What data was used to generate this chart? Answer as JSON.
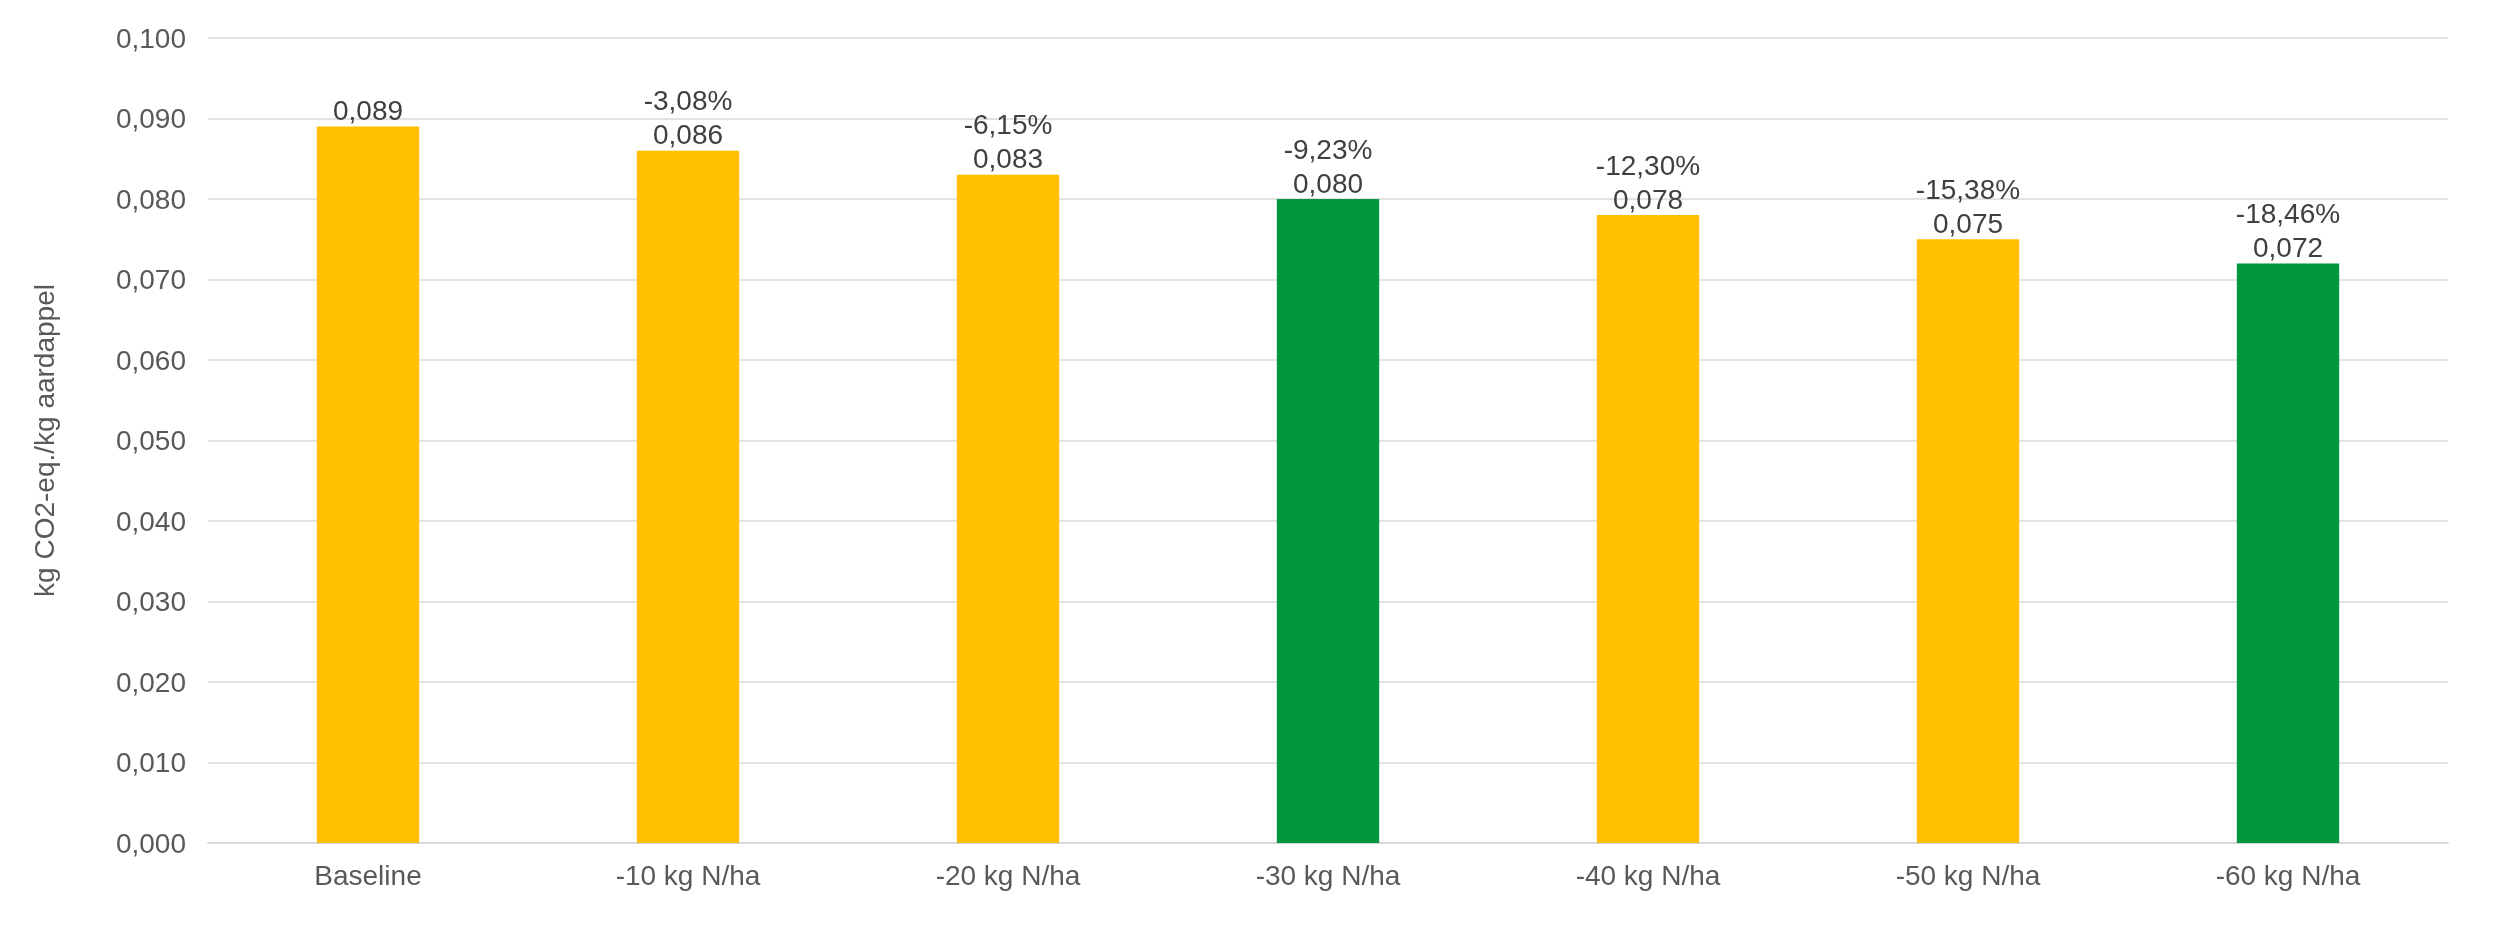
{
  "chart_data": {
    "type": "bar",
    "ylabel": "kg CO2-eq./kg aardappel",
    "categories": [
      "Baseline",
      "-10 kg N/ha",
      "-20 kg N/ha",
      "-30 kg N/ha",
      "-40 kg N/ha",
      "-50 kg N/ha",
      "-60 kg N/ha"
    ],
    "values": [
      0.089,
      0.086,
      0.083,
      0.08,
      0.078,
      0.075,
      0.072
    ],
    "colors": [
      "#ffc000",
      "#ffc000",
      "#ffc000",
      "#00973f",
      "#ffc000",
      "#ffc000",
      "#00973f"
    ],
    "value_labels": [
      "0,089",
      "0,086",
      "0,083",
      "0,080",
      "0,078",
      "0,075",
      "0,072"
    ],
    "annotations": [
      {
        "text": "-3,08%",
        "x": "-10 kg N/ha",
        "y": 0.086
      },
      {
        "text": "-6,15%",
        "x": "-20 kg N/ha",
        "y": 0.083
      },
      {
        "text": "-9,23%",
        "x": "-30 kg N/ha",
        "y": 0.08
      },
      {
        "text": "-12,30%",
        "x": "-40 kg N/ha",
        "y": 0.078
      },
      {
        "text": "-15,38%",
        "x": "-50 kg N/ha",
        "y": 0.075
      },
      {
        "text": "-18,46%",
        "x": "-60 kg N/ha",
        "y": 0.072
      }
    ],
    "ylim": [
      0,
      0.1
    ],
    "yticks": [
      {
        "value": 0,
        "label": "0,000"
      },
      {
        "value": 0.01,
        "label": "0,010"
      },
      {
        "value": 0.02,
        "label": "0,020"
      },
      {
        "value": 0.03,
        "label": "0,030"
      },
      {
        "value": 0.04,
        "label": "0,040"
      },
      {
        "value": 0.05,
        "label": "0,050"
      },
      {
        "value": 0.06,
        "label": "0,060"
      },
      {
        "value": 0.07,
        "label": "0,070"
      },
      {
        "value": 0.08,
        "label": "0,080"
      },
      {
        "value": 0.09,
        "label": "0,090"
      },
      {
        "value": 0.1,
        "label": "0,100"
      }
    ],
    "grid": "y"
  }
}
